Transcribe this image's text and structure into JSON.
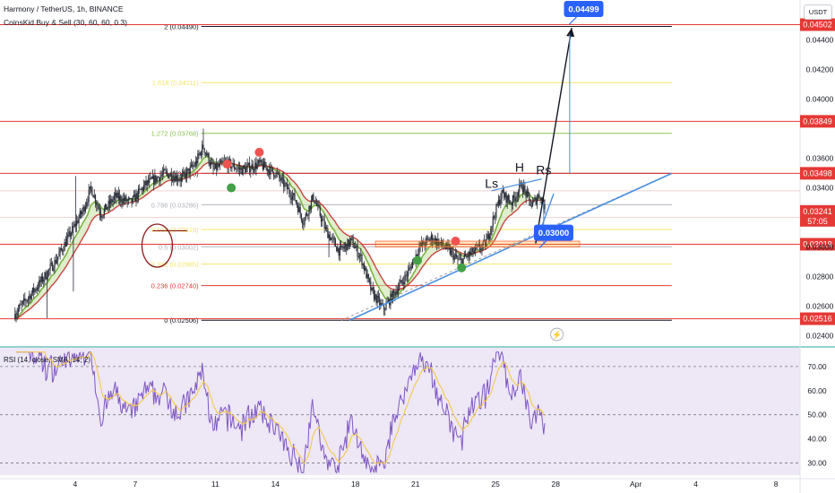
{
  "header": {
    "title": "Harmony / TetherUS, 1h, BINANCE",
    "indicator": "CoinsKid Buy & Sell (30, 60, 60, 0.3)",
    "currency": "USDT"
  },
  "colors": {
    "candle": "#2a2e39",
    "level_red": "#e53935",
    "fib_black": "#131722",
    "fib_yellow": "#f5e46a",
    "fib_green": "#8bc34a",
    "fib_grey": "#b0b3bb",
    "ema_fast": "#7cb342",
    "ema_slow": "#c62828",
    "trend_blue": "#4a90e2",
    "rsi_line": "#7e57c2",
    "rsi_ma": "#f5c542",
    "rsi_bg": "#ede7f6"
  },
  "chart_data": {
    "type": "candlestick",
    "symbol": "Harmony / TetherUS",
    "interval": "1h",
    "exchange": "BINANCE",
    "ylim": [
      0.0235,
      0.0462
    ],
    "price_axis_ticks": [
      "0.04400",
      "0.04200",
      "0.04000",
      "0.03600",
      "0.03400",
      "0.03000",
      "0.02800",
      "0.02600",
      "0.02400"
    ],
    "price_axis_tick_values": [
      0.044,
      0.042,
      0.04,
      0.036,
      0.034,
      0.03,
      0.028,
      0.026,
      0.024
    ],
    "x_ticks": [
      "4",
      "7",
      "11",
      "14",
      "18",
      "21",
      "25",
      "28",
      "Apr",
      "4",
      "8"
    ],
    "x_tick_days": [
      4,
      7,
      11,
      14,
      18,
      21,
      25,
      28,
      32,
      35,
      39
    ],
    "price_path": [
      {
        "day": 1.0,
        "price": 0.0255
      },
      {
        "day": 2.2,
        "price": 0.0275
      },
      {
        "day": 3.0,
        "price": 0.029
      },
      {
        "day": 3.6,
        "price": 0.0305
      },
      {
        "day": 4.4,
        "price": 0.0325
      },
      {
        "day": 4.8,
        "price": 0.034
      },
      {
        "day": 5.3,
        "price": 0.0322
      },
      {
        "day": 6.0,
        "price": 0.0334
      },
      {
        "day": 6.8,
        "price": 0.033
      },
      {
        "day": 7.5,
        "price": 0.0342
      },
      {
        "day": 8.5,
        "price": 0.035
      },
      {
        "day": 9.3,
        "price": 0.0346
      },
      {
        "day": 10.0,
        "price": 0.0356
      },
      {
        "day": 10.4,
        "price": 0.0368
      },
      {
        "day": 10.9,
        "price": 0.0352
      },
      {
        "day": 11.5,
        "price": 0.0357
      },
      {
        "day": 12.3,
        "price": 0.0352
      },
      {
        "day": 13.2,
        "price": 0.0356
      },
      {
        "day": 14.0,
        "price": 0.035
      },
      {
        "day": 15.0,
        "price": 0.0332
      },
      {
        "day": 15.4,
        "price": 0.0317
      },
      {
        "day": 15.9,
        "price": 0.0334
      },
      {
        "day": 16.5,
        "price": 0.0312
      },
      {
        "day": 17.2,
        "price": 0.0297
      },
      {
        "day": 17.8,
        "price": 0.0304
      },
      {
        "day": 18.3,
        "price": 0.0292
      },
      {
        "day": 18.8,
        "price": 0.027
      },
      {
        "day": 19.4,
        "price": 0.0258
      },
      {
        "day": 20.0,
        "price": 0.027
      },
      {
        "day": 20.6,
        "price": 0.0282
      },
      {
        "day": 21.2,
        "price": 0.03
      },
      {
        "day": 21.8,
        "price": 0.0306
      },
      {
        "day": 22.5,
        "price": 0.03
      },
      {
        "day": 23.2,
        "price": 0.029
      },
      {
        "day": 23.8,
        "price": 0.0296
      },
      {
        "day": 24.5,
        "price": 0.0302
      },
      {
        "day": 24.9,
        "price": 0.032
      },
      {
        "day": 25.3,
        "price": 0.0336
      },
      {
        "day": 25.8,
        "price": 0.033
      },
      {
        "day": 26.3,
        "price": 0.0342
      },
      {
        "day": 26.8,
        "price": 0.0328
      },
      {
        "day": 27.2,
        "price": 0.0336
      },
      {
        "day": 27.5,
        "price": 0.0324
      }
    ],
    "fib_levels": [
      {
        "ratio": "0",
        "price": 0.02506,
        "label": "0 (0.02506)"
      },
      {
        "ratio": "0.236",
        "price": 0.0274,
        "label": "0.236 (0.02740)"
      },
      {
        "ratio": "0.382",
        "price": 0.02885,
        "label": "0.382 (0.02885)"
      },
      {
        "ratio": "0.5",
        "price": 0.03002,
        "label": "0.5 (0.03002)"
      },
      {
        "ratio": "0.618",
        "price": 0.03119,
        "label": "0.618 (0.03119)"
      },
      {
        "ratio": "0.786",
        "price": 0.03286,
        "label": "0.786 (0.03286)"
      },
      {
        "ratio": "1",
        "price": 0.03498,
        "label": "1 (0.03498)"
      },
      {
        "ratio": "1.272",
        "price": 0.03768,
        "label": "1.272 (0.03768)"
      },
      {
        "ratio": "1.618",
        "price": 0.04111,
        "label": "1.618 (0.04111)"
      },
      {
        "ratio": "2",
        "price": 0.0449,
        "label": "2 (0.04490)"
      }
    ],
    "price_levels": [
      {
        "price": 0.04502,
        "label": "0.04502"
      },
      {
        "price": 0.03849,
        "label": "0.03849"
      },
      {
        "price": 0.03498,
        "label": "0.03498"
      },
      {
        "price": 0.03019,
        "label": "0.03019"
      },
      {
        "price": 0.02516,
        "label": "0.02516"
      }
    ],
    "current_price": {
      "price": 0.03241,
      "label": "0.03241",
      "countdown": "57:05"
    },
    "pattern_labels": [
      {
        "text": "Ls",
        "day": 24.8,
        "price": 0.034
      },
      {
        "text": "H",
        "day": 26.2,
        "price": 0.0351
      },
      {
        "text": "Rs",
        "day": 27.4,
        "price": 0.0349
      }
    ],
    "targets": [
      {
        "label": "0.04499",
        "day": 32.0,
        "price": 0.04499
      },
      {
        "label": "0.03000",
        "day": 29.0,
        "price": 0.03
      }
    ],
    "signals": [
      {
        "type": "sell",
        "day": 11.6,
        "price": 0.0356
      },
      {
        "type": "sell",
        "day": 13.2,
        "price": 0.0364
      },
      {
        "type": "buy",
        "day": 11.8,
        "price": 0.034
      },
      {
        "type": "buy",
        "day": 21.1,
        "price": 0.0291
      },
      {
        "type": "sell",
        "day": 23.0,
        "price": 0.0304
      },
      {
        "type": "buy",
        "day": 23.3,
        "price": 0.0286
      }
    ],
    "rsi": {
      "label": "RSI (14, close, SMA, 14, 2)",
      "ylim": [
        25,
        77
      ],
      "levels": [
        70,
        50,
        30
      ],
      "ticks": [
        "70.00",
        "60.00",
        "50.00",
        "40.00",
        "30.00"
      ],
      "tick_values": [
        70,
        60,
        50,
        40,
        30
      ]
    }
  }
}
